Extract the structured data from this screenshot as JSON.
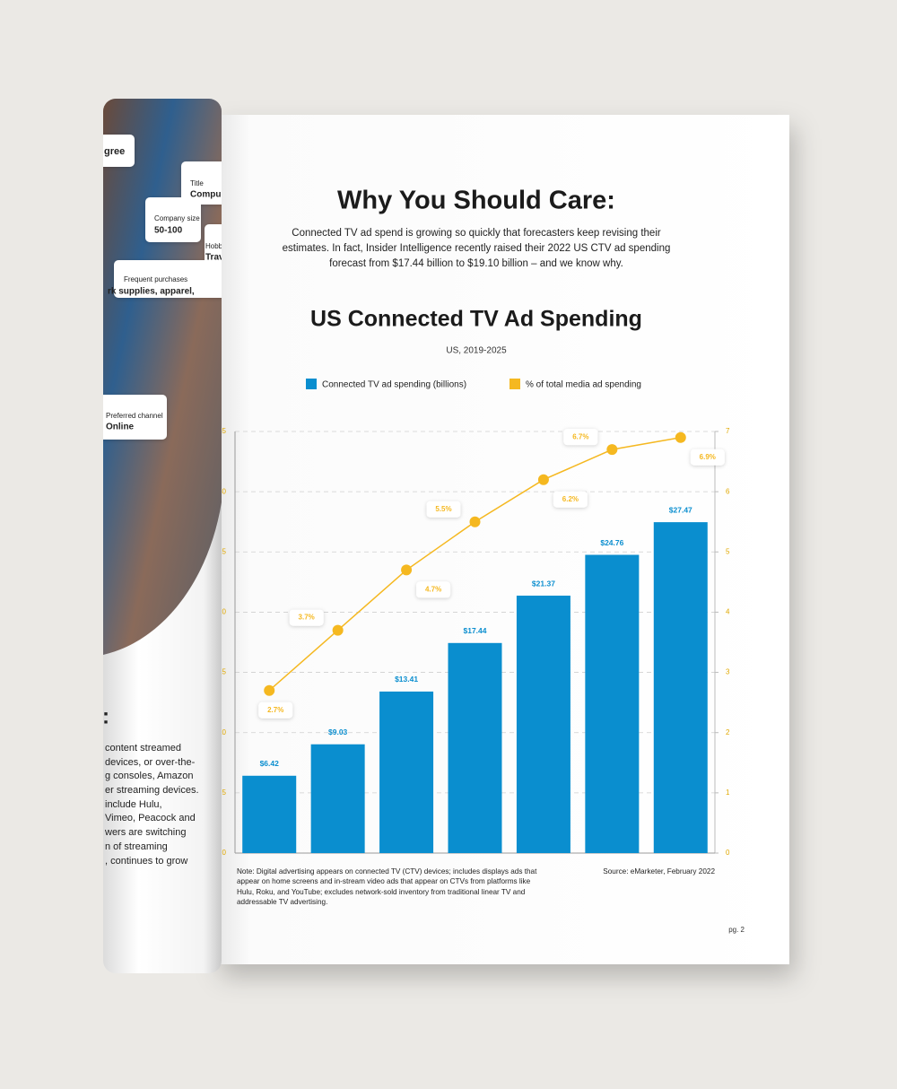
{
  "page": {
    "heading": "Why You Should Care:",
    "body": [
      "Connected TV ad spend is growing so quickly that forecasters keep revising their",
      "estimates. In fact, Insider Intelligence recently raised their 2022 US CTV ad spending",
      "forecast from $17.44 billion to $19.10 billion – and we know why."
    ],
    "note": [
      "Note: Digital advertising appears on connected TV (CTV) devices; includes displays ads that",
      "appear on home screens and in-stream video ads that appear on CTVs from platforms like",
      "Hulu, Roku, and YouTube; excludes network-sold inventory from traditional linear TV and",
      "addressable TV advertising."
    ],
    "source": "Source: eMarketer, February 2022",
    "page_number": "pg. 2"
  },
  "left_page": {
    "cards": [
      "gree",
      "Title",
      "Compu",
      "Company size",
      "50-100",
      "Hobbi",
      "Trav",
      "Frequent purchases",
      "rk supplies, apparel,",
      "Preferred channel",
      "Online"
    ],
    "colon": ":",
    "lines": [
      "content streamed",
      "devices, or over-the-",
      "g consoles, Amazon",
      "er streaming devices.",
      "include Hulu,",
      "Vimeo, Peacock and",
      "wers are switching",
      "n of streaming",
      ", continues to grow"
    ]
  },
  "chart_data": {
    "type": "bar_line",
    "title": "US Connected TV Ad Spending",
    "subtitle": "US, 2019-2025",
    "categories": [
      null,
      null,
      null,
      null,
      null,
      null,
      null
    ],
    "series": [
      {
        "name": "Connected TV ad spending (billions)",
        "color": "#0a8ecf",
        "type": "bar",
        "values": [
          6.42,
          9.03,
          13.41,
          17.44,
          21.37,
          24.76,
          27.47
        ],
        "value_labels": [
          "$6.42",
          "$9.03",
          "$13.41",
          "$17.44",
          "$21.37",
          "$24.76",
          "$27.47"
        ]
      },
      {
        "name": "% of total media ad spending",
        "color": "#f5b820",
        "type": "line",
        "axis": "y2",
        "values": [
          2.7,
          3.7,
          4.7,
          5.5,
          6.2,
          6.7,
          6.9
        ],
        "value_labels": [
          "2.7%",
          "3.7%",
          "4.7%",
          "5.5%",
          "6.2%",
          "6.7%",
          "6.9%"
        ]
      }
    ],
    "ylim": [
      0,
      35
    ],
    "yticks": [
      0,
      5,
      10,
      15,
      20,
      25,
      30,
      35
    ],
    "y2lim": [
      0,
      7
    ],
    "y2ticks": [
      0,
      1,
      2,
      3,
      4,
      5,
      6,
      7
    ],
    "grid": true,
    "legend": "top"
  }
}
